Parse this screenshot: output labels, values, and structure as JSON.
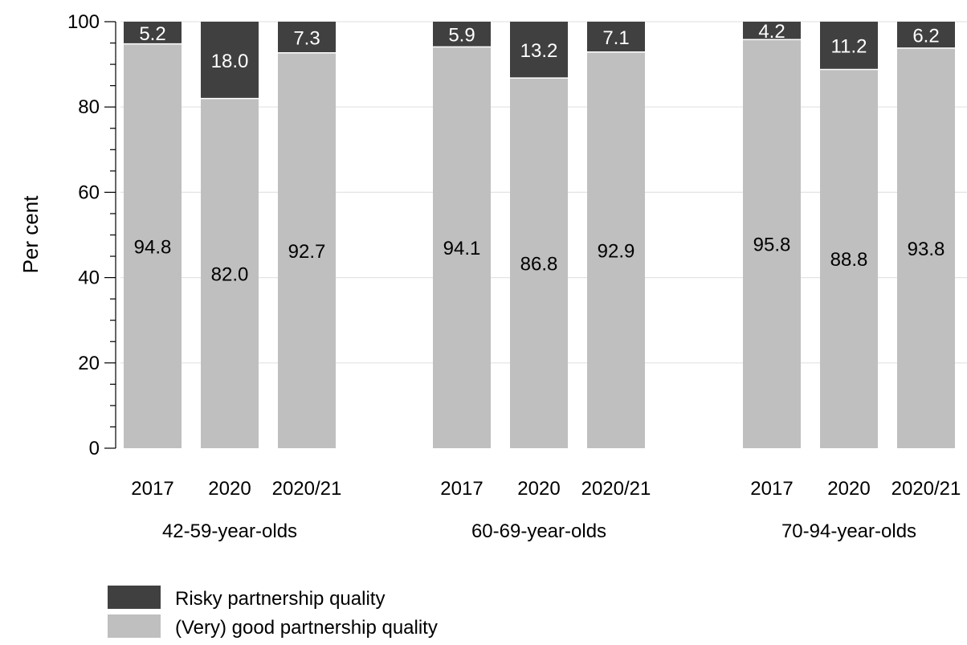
{
  "chart_data": {
    "type": "bar",
    "stacked": true,
    "ylabel": "Per cent",
    "ylim": [
      0,
      100
    ],
    "yticks": [
      0,
      20,
      40,
      60,
      80,
      100
    ],
    "grid": true,
    "groups": [
      {
        "label": "42-59-year-olds",
        "categories": [
          "2017",
          "2020",
          "2020/21"
        ]
      },
      {
        "label": "60-69-year-olds",
        "categories": [
          "2017",
          "2020",
          "2020/21"
        ]
      },
      {
        "label": "70-94-year-olds",
        "categories": [
          "2017",
          "2020",
          "2020/21"
        ]
      }
    ],
    "series": [
      {
        "name": "(Very) good partnership quality",
        "color": "#bfbfbf",
        "values": [
          94.8,
          82.0,
          92.7,
          94.1,
          86.8,
          92.9,
          95.8,
          88.8,
          93.8
        ],
        "labels": [
          "94.8",
          "82.0",
          "92.7",
          "94.1",
          "86.8",
          "92.9",
          "95.8",
          "88.8",
          "93.8"
        ]
      },
      {
        "name": "Risky partnership quality",
        "color": "#404040",
        "values": [
          5.2,
          18.0,
          7.3,
          5.9,
          13.2,
          7.1,
          4.2,
          11.2,
          6.2
        ],
        "labels": [
          "5.2",
          "18.0",
          "7.3",
          "5.9",
          "13.2",
          "7.1",
          "4.2",
          "11.2",
          "6.2"
        ]
      }
    ],
    "legend": {
      "placement": "bottom-left",
      "order": [
        "Risky partnership quality",
        "(Very) good partnership quality"
      ]
    }
  }
}
